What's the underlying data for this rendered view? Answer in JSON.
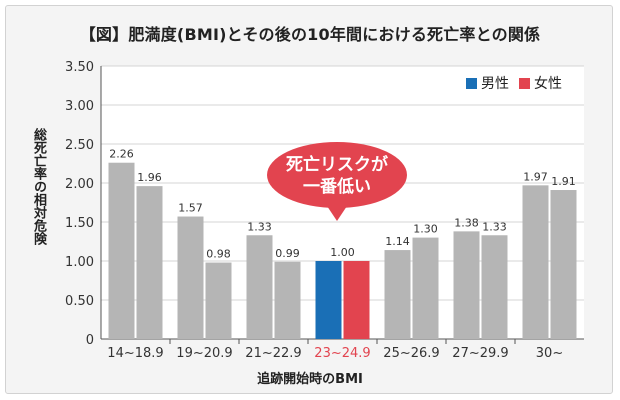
{
  "title": "【図】肥満度(BMI)とその後の10年間における死亡率との関係",
  "callout": {
    "line1": "死亡リスクが",
    "line2": "一番低い"
  },
  "colors": {
    "male": "#b5b5b5",
    "female": "#b5b5b5",
    "highlight_male": "#1a6fb6",
    "highlight_female": "#e2444f",
    "callout": "#e2444f",
    "highlight_label": "#e2444f"
  },
  "chart_data": {
    "type": "bar",
    "title": "【図】肥満度(BMI)とその後の10年間における死亡率との関係",
    "xlabel": "追跡開始時のBMI",
    "ylabel": "総死亡率の相対危険",
    "categories": [
      "14~18.9",
      "19~20.9",
      "21~22.9",
      "23~24.9",
      "25~26.9",
      "27~29.9",
      "30~"
    ],
    "series": [
      {
        "name": "男性",
        "values": [
          2.26,
          1.57,
          1.33,
          1.0,
          1.14,
          1.38,
          1.97
        ],
        "labels": [
          "2.26",
          "1.57",
          "1.33",
          "",
          "1.14",
          "1.38",
          "1.97"
        ]
      },
      {
        "name": "女性",
        "values": [
          1.96,
          0.98,
          0.99,
          1.0,
          1.3,
          1.33,
          1.91
        ],
        "labels": [
          "1.96",
          "0.98",
          "0.99",
          "",
          "1.30",
          "1.33",
          "1.91"
        ]
      }
    ],
    "shared_label": {
      "category": "23~24.9",
      "text": "1.00"
    },
    "yticks": [
      "0",
      "0.50",
      "1.00",
      "1.50",
      "2.00",
      "2.50",
      "3.00",
      "3.50"
    ],
    "ylim": [
      0,
      3.5
    ],
    "highlight_category": "23~24.9",
    "grid": true,
    "legend_position": "top-right"
  }
}
